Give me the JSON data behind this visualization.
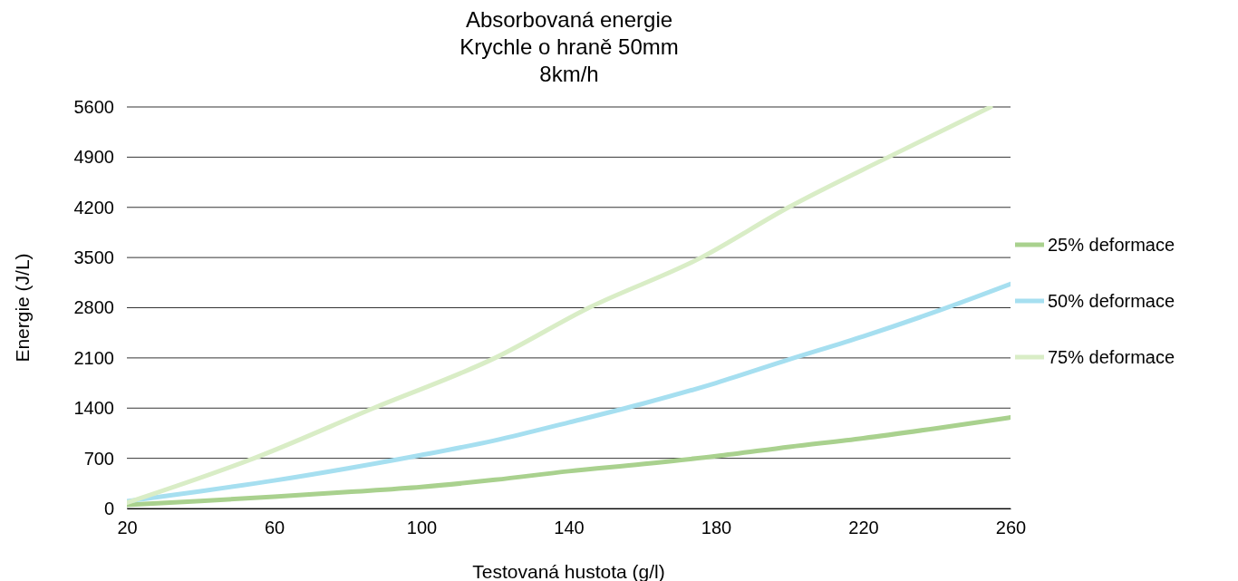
{
  "chart_data": {
    "type": "line",
    "title": "Absorbovaná energie\nKrychle o hraně 50mm\n8km/h",
    "xlabel": "Testovaná hustota (g/l)",
    "ylabel": "Energie (J/L)",
    "xlim": [
      20,
      260
    ],
    "xticks": [
      20,
      60,
      100,
      140,
      180,
      220,
      260
    ],
    "ylim": [
      0,
      5600
    ],
    "yticks": [
      0,
      700,
      1400,
      2100,
      2800,
      3500,
      4200,
      4900,
      5600
    ],
    "grid": "y",
    "legend": "right",
    "marker": "none",
    "line_style": "solid",
    "series": [
      {
        "name": "25% deformace",
        "color": "#a9d18e",
        "x": [
          20,
          40,
          60,
          80,
          100,
          120,
          140,
          160,
          180,
          200,
          220,
          240,
          260
        ],
        "values": [
          50,
          105,
          165,
          230,
          300,
          400,
          520,
          620,
          730,
          860,
          980,
          1120,
          1270
        ]
      },
      {
        "name": "50% deformace",
        "color": "#a6dff0",
        "x": [
          20,
          40,
          60,
          80,
          100,
          120,
          140,
          160,
          180,
          200,
          220,
          240,
          260
        ],
        "values": [
          100,
          240,
          390,
          560,
          745,
          950,
          1200,
          1460,
          1750,
          2080,
          2400,
          2750,
          3130
        ]
      },
      {
        "name": "75% deformace",
        "color": "#d9edc6",
        "x": [
          20,
          54.5,
          87,
          120,
          145.5,
          176,
          199.7,
          226.8,
          254.6
        ],
        "values": [
          80,
          700,
          1400,
          2100,
          2800,
          3500,
          4200,
          4900,
          5600
        ]
      }
    ]
  }
}
